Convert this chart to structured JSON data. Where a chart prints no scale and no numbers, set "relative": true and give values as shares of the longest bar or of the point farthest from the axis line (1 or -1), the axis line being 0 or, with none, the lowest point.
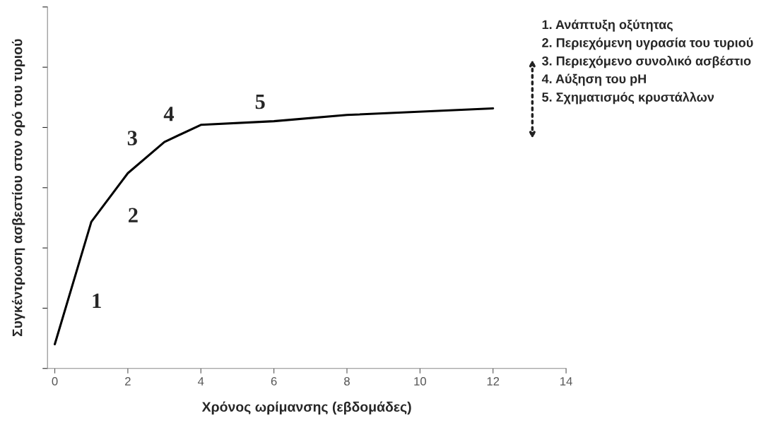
{
  "chart_data": {
    "type": "line",
    "relative": true,
    "xlabel": "Χρόνος ωρίμανσης (εβδομάδες)",
    "ylabel": "Συγκέντρωση ασβεστίου στον ορό του τυριού",
    "x": [
      0,
      1,
      2,
      3,
      4,
      6,
      8,
      12
    ],
    "series": [
      {
        "color": "#000000",
        "values": [
          0.093,
          0.564,
          0.751,
          0.871,
          0.937,
          0.951,
          0.975,
          1.0
        ]
      }
    ],
    "xlim": [
      -0.2,
      14
    ],
    "xticks": [
      0,
      2,
      4,
      6,
      8,
      10,
      12,
      14
    ],
    "tick_labels": "x",
    "grid": false,
    "marker": "none",
    "line_style": "solid",
    "annotations": [
      {
        "text": "1",
        "x": 0.5,
        "y": 0.3285
      },
      {
        "text": "2",
        "x": 1.5,
        "y": 0.6575
      },
      {
        "text": "3",
        "x": 2.5,
        "y": 0.811
      },
      {
        "text": "4",
        "x": 3.5,
        "y": 0.904
      },
      {
        "text": "5",
        "x": 6,
        "y": 0.951
      },
      "1. Ανάπτυξη οξύτητας",
      "2. Περιεχόμενη υγρασία του τυριού",
      "3. Περιεχόμενο συνολικό ασβέστιο",
      "4. Αύξηση του pH",
      "5. Σχηματισμός κρυστάλλων"
    ]
  }
}
